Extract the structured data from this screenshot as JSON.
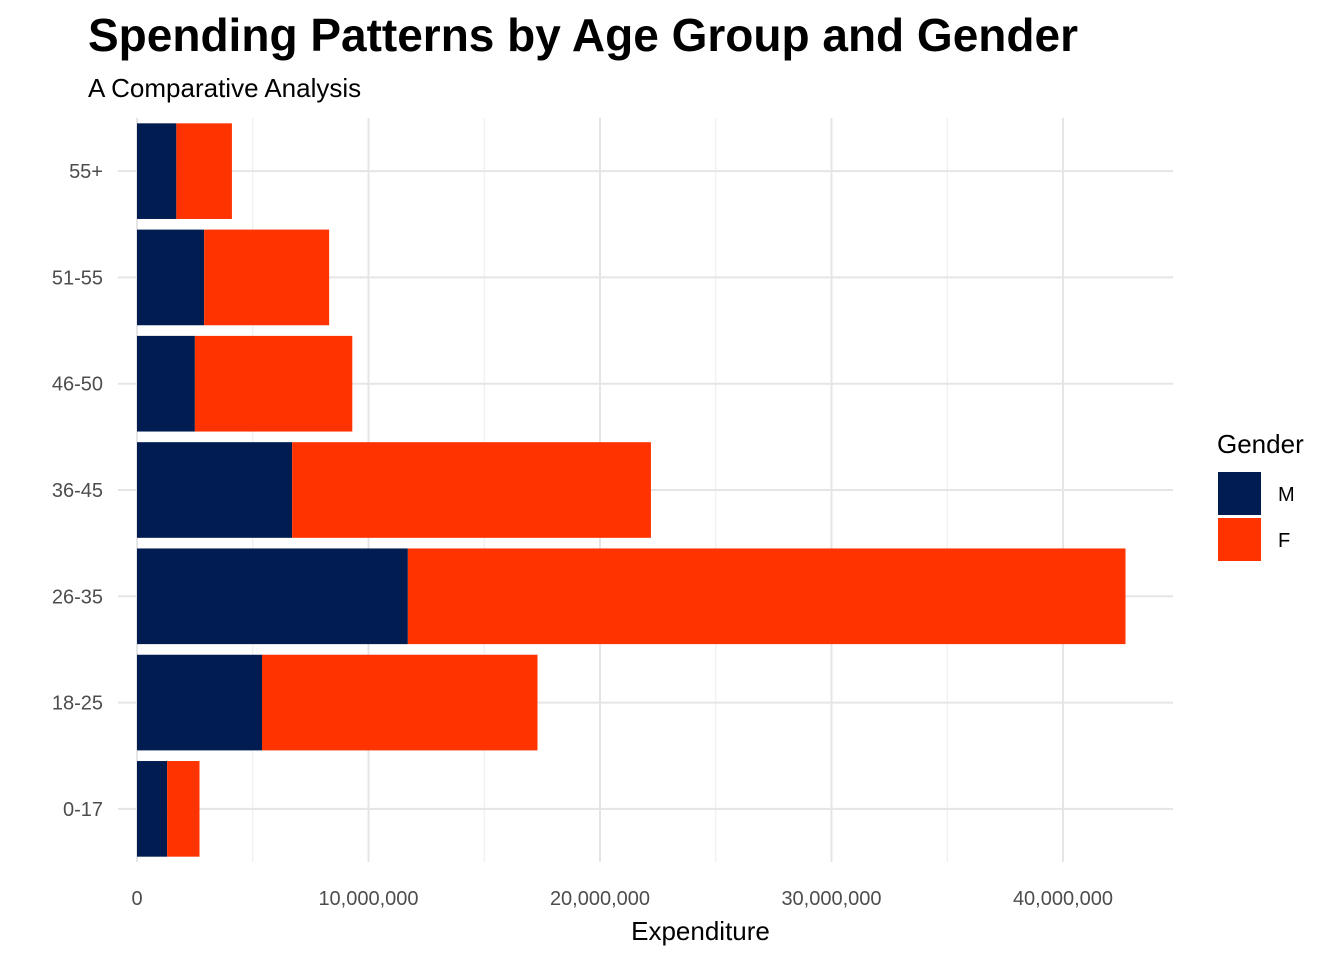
{
  "chart_data": {
    "type": "bar",
    "orientation": "horizontal",
    "stacked": true,
    "title": "Spending Patterns by Age Group and Gender",
    "subtitle": "A Comparative Analysis",
    "xlabel": "Expenditure",
    "ylabel": "",
    "categories": [
      "0-17",
      "18-25",
      "26-35",
      "36-45",
      "46-50",
      "51-55",
      "55+"
    ],
    "series": [
      {
        "name": "M",
        "color": "#001C50",
        "values": [
          1300000,
          5400000,
          11700000,
          6700000,
          2500000,
          2900000,
          1700000
        ]
      },
      {
        "name": "F",
        "color": "#FF3300",
        "values": [
          1400000,
          11900000,
          31000000,
          15500000,
          6800000,
          5400000,
          2400000
        ]
      }
    ],
    "xlim": [
      0,
      44800000
    ],
    "x_ticks": [
      0,
      10000000,
      20000000,
      30000000,
      40000000
    ],
    "x_tick_labels": [
      "0",
      "10,000,000",
      "20,000,000",
      "30,000,000",
      "40,000,000"
    ],
    "grid": true,
    "legend": {
      "title": "Gender",
      "position": "right",
      "items": [
        "M",
        "F"
      ]
    }
  }
}
